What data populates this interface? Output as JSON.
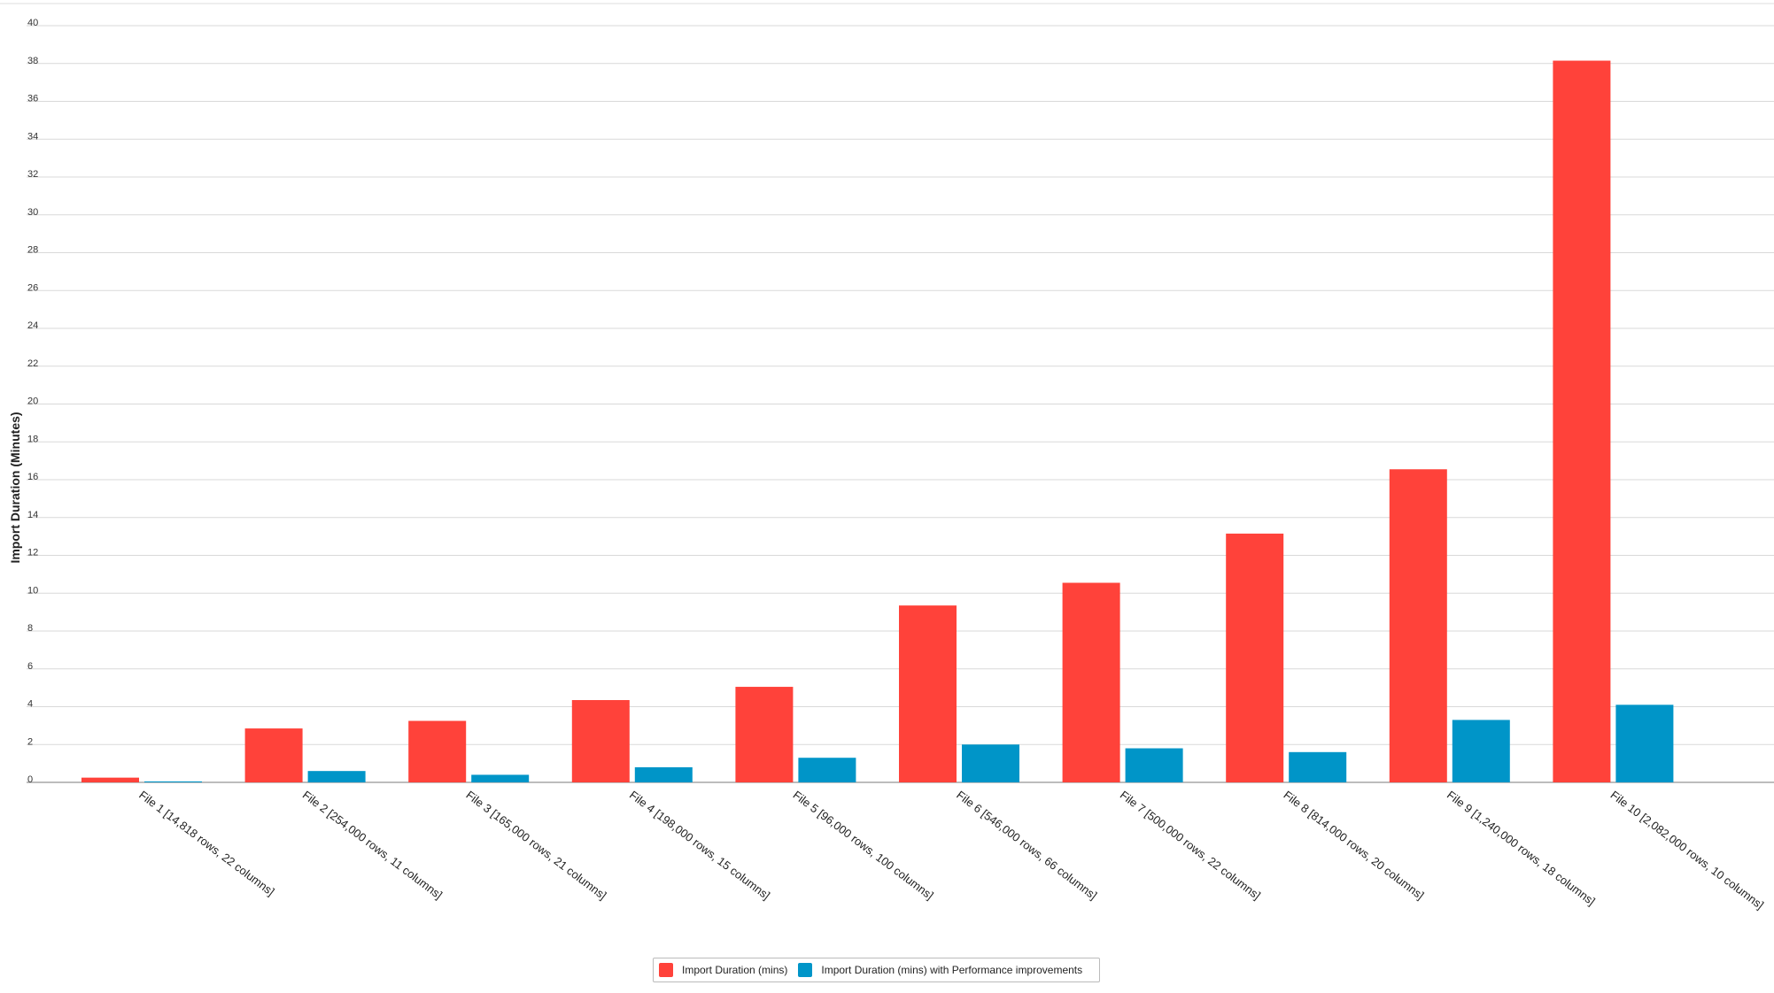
{
  "chart_data": {
    "type": "bar",
    "title": "",
    "xlabel": "",
    "ylabel": "Import Duration (Minutes)",
    "ylim": [
      0,
      40
    ],
    "yticks": [
      0,
      2,
      4,
      6,
      8,
      10,
      12,
      14,
      16,
      18,
      20,
      22,
      24,
      26,
      28,
      30,
      32,
      34,
      36,
      38,
      40
    ],
    "grid": true,
    "legend_position": "bottom-center",
    "categories": [
      "File 1 [14,818 rows, 22 columns]",
      "File 2 [254,000 rows, 11 columns]",
      "File 3 [165,000 rows, 21 columns]",
      "File 4 [198,000 rows, 15 columns]",
      "File 5 [96,000 rows, 100 columns]",
      "File 6 [546,000 rows, 66 columns]",
      "File 7 [500,000 rows, 22 columns]",
      "File 8 [814,000 rows, 20 columns]",
      "File 9 [1,240,000 rows, 18 columns]",
      "File 10 [2,082,000 rows, 10 columns]"
    ],
    "series": [
      {
        "name": "Import Duration (mins)",
        "color": "#ff423a",
        "values": [
          0.25,
          2.85,
          3.25,
          4.35,
          5.05,
          9.35,
          10.55,
          13.15,
          16.55,
          38.15
        ]
      },
      {
        "name": "Import Duration (mins) with Performance improvements",
        "color": "#0095c8",
        "values": [
          0.05,
          0.6,
          0.4,
          0.8,
          1.3,
          2.0,
          1.8,
          1.6,
          3.3,
          4.1
        ]
      }
    ]
  }
}
